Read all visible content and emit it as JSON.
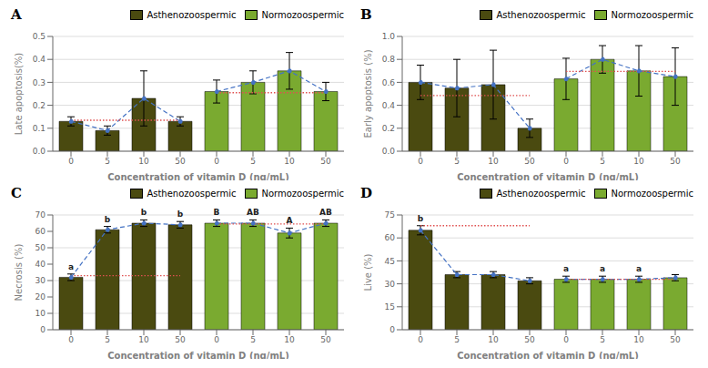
{
  "chart_data": [
    {
      "type": "bar",
      "title": "A",
      "xlabel": "Concentration of vitamin D (ng/mL)",
      "ylabel": "Late apoptosis(%)",
      "categories": [
        "0",
        "5",
        "10",
        "50",
        "0",
        "5",
        "10",
        "50"
      ],
      "ylim": [
        0,
        0.5
      ],
      "yticks": [
        {
          "value": 0,
          "label": "0.0"
        },
        0.1,
        0.2,
        0.3,
        0.4,
        0.5
      ],
      "grid": true,
      "legend": "upper right",
      "series": [
        {
          "name": "Asthenozoospermic",
          "type": "bar",
          "color": "#4a4a10",
          "values": [
            0.13,
            0.09,
            0.23,
            0.13,
            null,
            null,
            null,
            null
          ],
          "errors": [
            0.02,
            0.02,
            0.12,
            0.02,
            null,
            null,
            null,
            null
          ]
        },
        {
          "name": "Normozoospermic",
          "type": "bar",
          "color": "#7aaa30",
          "values": [
            null,
            null,
            null,
            null,
            0.26,
            0.3,
            0.35,
            0.26
          ],
          "errors": [
            null,
            null,
            null,
            null,
            0.05,
            0.05,
            0.08,
            0.04
          ]
        },
        {
          "type": "line",
          "color": "#4472c4",
          "line_style": "dashed",
          "marker": "circle",
          "values": [
            0.13,
            0.09,
            0.23,
            0.13,
            null,
            null,
            null,
            null
          ]
        },
        {
          "type": "line",
          "color": "#4472c4",
          "line_style": "dashed",
          "marker": "circle",
          "values": [
            null,
            null,
            null,
            null,
            0.26,
            0.3,
            0.35,
            0.26
          ]
        }
      ],
      "reference_lines": [
        {
          "value": 0.135,
          "group": "Asthenozoospermic",
          "color": "#e05050",
          "line_style": "dotted"
        },
        {
          "value": 0.255,
          "group": "Normozoospermic",
          "color": "#e05050",
          "line_style": "dotted"
        }
      ]
    },
    {
      "type": "bar",
      "title": "B",
      "xlabel": "Concentration of vitamin D (ng/mL)",
      "ylabel": "Early apoptosis (%)",
      "categories": [
        "0",
        "5",
        "10",
        "50",
        "0",
        "5",
        "10",
        "50"
      ],
      "ylim": [
        0.0,
        1.0
      ],
      "yticks": [
        {
          "value": 0,
          "label": "0.0"
        },
        0.2,
        0.4,
        0.6,
        0.8,
        {
          "value": 1,
          "label": "1.0"
        }
      ],
      "grid": true,
      "legend": "upper right",
      "series": [
        {
          "name": "Asthenozoospermic",
          "type": "bar",
          "color": "#4a4a10",
          "values": [
            0.6,
            0.55,
            0.58,
            0.2,
            null,
            null,
            null,
            null
          ],
          "errors": [
            0.15,
            0.25,
            0.3,
            0.08,
            null,
            null,
            null,
            null
          ]
        },
        {
          "name": "Normozoospermic",
          "type": "bar",
          "color": "#7aaa30",
          "values": [
            null,
            null,
            null,
            null,
            0.63,
            0.8,
            0.7,
            0.65
          ],
          "errors": [
            null,
            null,
            null,
            null,
            0.18,
            0.12,
            0.22,
            0.25
          ]
        },
        {
          "type": "line",
          "color": "#4472c4",
          "line_style": "dashed",
          "marker": "circle",
          "values": [
            0.6,
            0.55,
            0.58,
            0.2,
            null,
            null,
            null,
            null
          ]
        },
        {
          "type": "line",
          "color": "#4472c4",
          "line_style": "dashed",
          "marker": "circle",
          "values": [
            null,
            null,
            null,
            null,
            0.63,
            0.8,
            0.7,
            0.65
          ]
        }
      ],
      "reference_lines": [
        {
          "value": 0.485,
          "group": "Asthenozoospermic",
          "color": "#e05050",
          "line_style": "dotted"
        },
        {
          "value": 0.695,
          "group": "Normozoospermic",
          "color": "#e05050",
          "line_style": "dotted"
        }
      ]
    },
    {
      "type": "bar",
      "title": "C",
      "xlabel": "Concentration of vitamin D (ng/mL)",
      "ylabel": "Necrosis (%)",
      "categories": [
        "0",
        "5",
        "10",
        "50",
        "0",
        "5",
        "10",
        "50"
      ],
      "ylim": [
        0,
        70
      ],
      "yticks": [
        0,
        10,
        20,
        30,
        40,
        50,
        60,
        70
      ],
      "grid": true,
      "legend": "upper right",
      "series": [
        {
          "name": "Asthenozoospermic",
          "type": "bar",
          "color": "#4a4a10",
          "values": [
            32,
            61,
            65,
            64,
            null,
            null,
            null,
            null
          ],
          "errors": [
            2,
            2,
            2,
            2,
            null,
            null,
            null,
            null
          ],
          "annotations": [
            "a",
            "b",
            "b",
            "b",
            null,
            null,
            null,
            null
          ]
        },
        {
          "name": "Normozoospermic",
          "type": "bar",
          "color": "#7aaa30",
          "values": [
            null,
            null,
            null,
            null,
            65,
            65,
            59,
            65
          ],
          "errors": [
            null,
            null,
            null,
            null,
            2,
            2,
            3,
            2
          ],
          "annotations": [
            null,
            null,
            null,
            null,
            "B",
            "AB",
            "A",
            "AB"
          ]
        },
        {
          "type": "line",
          "color": "#4472c4",
          "line_style": "dashed",
          "marker": "circle",
          "values": [
            32,
            61,
            65,
            64,
            null,
            null,
            null,
            null
          ]
        },
        {
          "type": "line",
          "color": "#4472c4",
          "line_style": "dashed",
          "marker": "circle",
          "values": [
            null,
            null,
            null,
            null,
            65,
            65,
            59,
            65
          ]
        }
      ],
      "reference_lines": [
        {
          "value": 33,
          "group": "Asthenozoospermic",
          "color": "#e05050",
          "line_style": "dotted"
        },
        {
          "value": 64.5,
          "group": "Normozoospermic",
          "color": "#e05050",
          "line_style": "dotted"
        }
      ]
    },
    {
      "type": "bar",
      "title": "D",
      "xlabel": "Concentration of vitamin D (ng/mL)",
      "ylabel": "Live (%)",
      "categories": [
        "0",
        "5",
        "10",
        "50",
        "0",
        "5",
        "10",
        "50"
      ],
      "ylim": [
        0,
        75
      ],
      "yticks": [
        0,
        15,
        30,
        45,
        60,
        75
      ],
      "grid": true,
      "legend": "upper right",
      "series": [
        {
          "name": "Asthenozoospermic",
          "type": "bar",
          "color": "#4a4a10",
          "values": [
            65,
            36,
            36,
            32,
            null,
            null,
            null,
            null
          ],
          "errors": [
            3,
            2,
            2,
            2,
            null,
            null,
            null,
            null
          ],
          "annotations": [
            "b",
            null,
            null,
            null,
            null,
            null,
            null,
            null
          ]
        },
        {
          "name": "Normozoospermic",
          "type": "bar",
          "color": "#7aaa30",
          "values": [
            null,
            null,
            null,
            null,
            33,
            33,
            33,
            34
          ],
          "errors": [
            null,
            null,
            null,
            null,
            2,
            2,
            2,
            2
          ],
          "annotations": [
            null,
            null,
            null,
            null,
            "a",
            "a",
            "a",
            null
          ]
        },
        {
          "type": "line",
          "color": "#4472c4",
          "line_style": "dashed",
          "marker": "circle",
          "values": [
            65,
            36,
            36,
            32,
            null,
            null,
            null,
            null
          ]
        },
        {
          "type": "line",
          "color": "#4472c4",
          "line_style": "dashed",
          "marker": "circle",
          "values": [
            null,
            null,
            null,
            null,
            33,
            33,
            33,
            34
          ]
        }
      ],
      "reference_lines": [
        {
          "value": 68,
          "group": "Asthenozoospermic",
          "color": "#e05050",
          "line_style": "dotted"
        },
        {
          "value": 33,
          "group": "Normozoospermic",
          "color": "#e05050",
          "line_style": "dotted"
        }
      ]
    }
  ]
}
